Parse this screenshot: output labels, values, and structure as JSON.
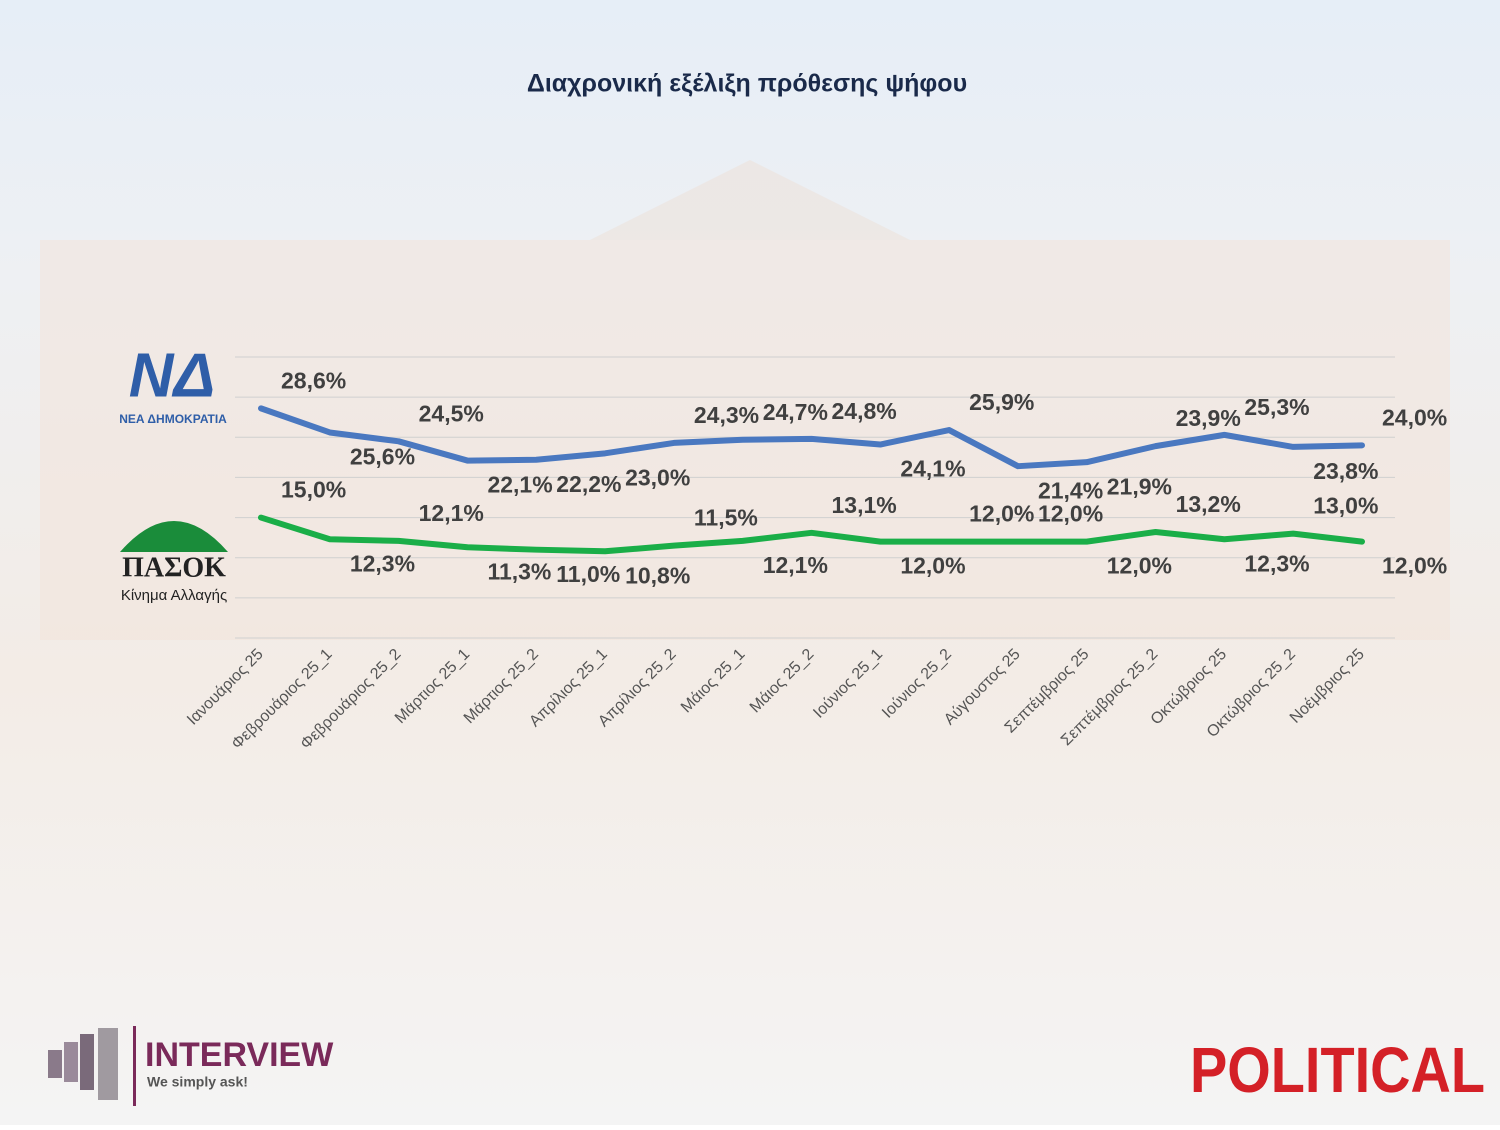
{
  "chart_data": {
    "type": "line",
    "title": "Διαχρονική εξέλιξη πρόθεσης ψήφου",
    "categories": [
      "Ιανουάριος 25",
      "Φεβρουάριος 25_1",
      "Φεβρουάριος 25_2",
      "Μάρτιος 25_1",
      "Μάρτιος 25_2",
      "Απρίλιος 25_1",
      "Απρίλιος 25_2",
      "Μάιος 25_1",
      "Μάιος 25_2",
      "Ιούνιος 25_1",
      "Ιούνιος 25_2",
      "Αύγουστος 25",
      "Σεπτέμβριος 25",
      "Σεπτέμβριος 25_2",
      "Οκτώβριος 25",
      "Οκτώβριος 25_2",
      "Νοέμβριος 25"
    ],
    "series": [
      {
        "name": "ΝΕΑ ΔΗΜΟΚΡΑΤΙΑ",
        "logo": "ΝΔ",
        "color": "#4a78c0",
        "values": [
          28.6,
          25.6,
          24.5,
          22.1,
          22.2,
          23.0,
          24.3,
          24.7,
          24.8,
          24.1,
          25.9,
          21.4,
          21.9,
          23.9,
          25.3,
          23.8,
          24.0
        ],
        "value_labels": [
          "28,6%",
          "25,6%",
          "24,5%",
          "22,1%",
          "22,2%",
          "23,0%",
          "24,3%",
          "24,7%",
          "24,8%",
          "24,1%",
          "25,9%",
          "21,4%",
          "21,9%",
          "23,9%",
          "25,3%",
          "23,8%",
          "24,0%"
        ]
      },
      {
        "name": "ΠΑΣΟΚ",
        "subtitle": "Κίνημα Αλλαγής",
        "color": "#1aae48",
        "values": [
          15.0,
          12.3,
          12.1,
          11.3,
          11.0,
          10.8,
          11.5,
          12.1,
          13.1,
          12.0,
          12.0,
          12.0,
          12.0,
          13.2,
          12.3,
          13.0,
          12.0
        ],
        "value_labels": [
          "15,0%",
          "12,3%",
          "12,1%",
          "11,3%",
          "11,0%",
          "10,8%",
          "11,5%",
          "12,1%",
          "13,1%",
          "12,0%",
          "12,0%",
          "12,0%",
          "12,0%",
          "13,2%",
          "12,3%",
          "13,0%",
          "12,0%"
        ]
      }
    ],
    "ylim": [
      0,
      35
    ],
    "yticks": [
      0,
      5,
      10,
      15,
      20,
      25,
      30,
      35
    ],
    "grid": true,
    "branding": {
      "left": "INTERVIEW",
      "left_tagline": "We simply ask!",
      "right": "POLITICAL"
    }
  }
}
